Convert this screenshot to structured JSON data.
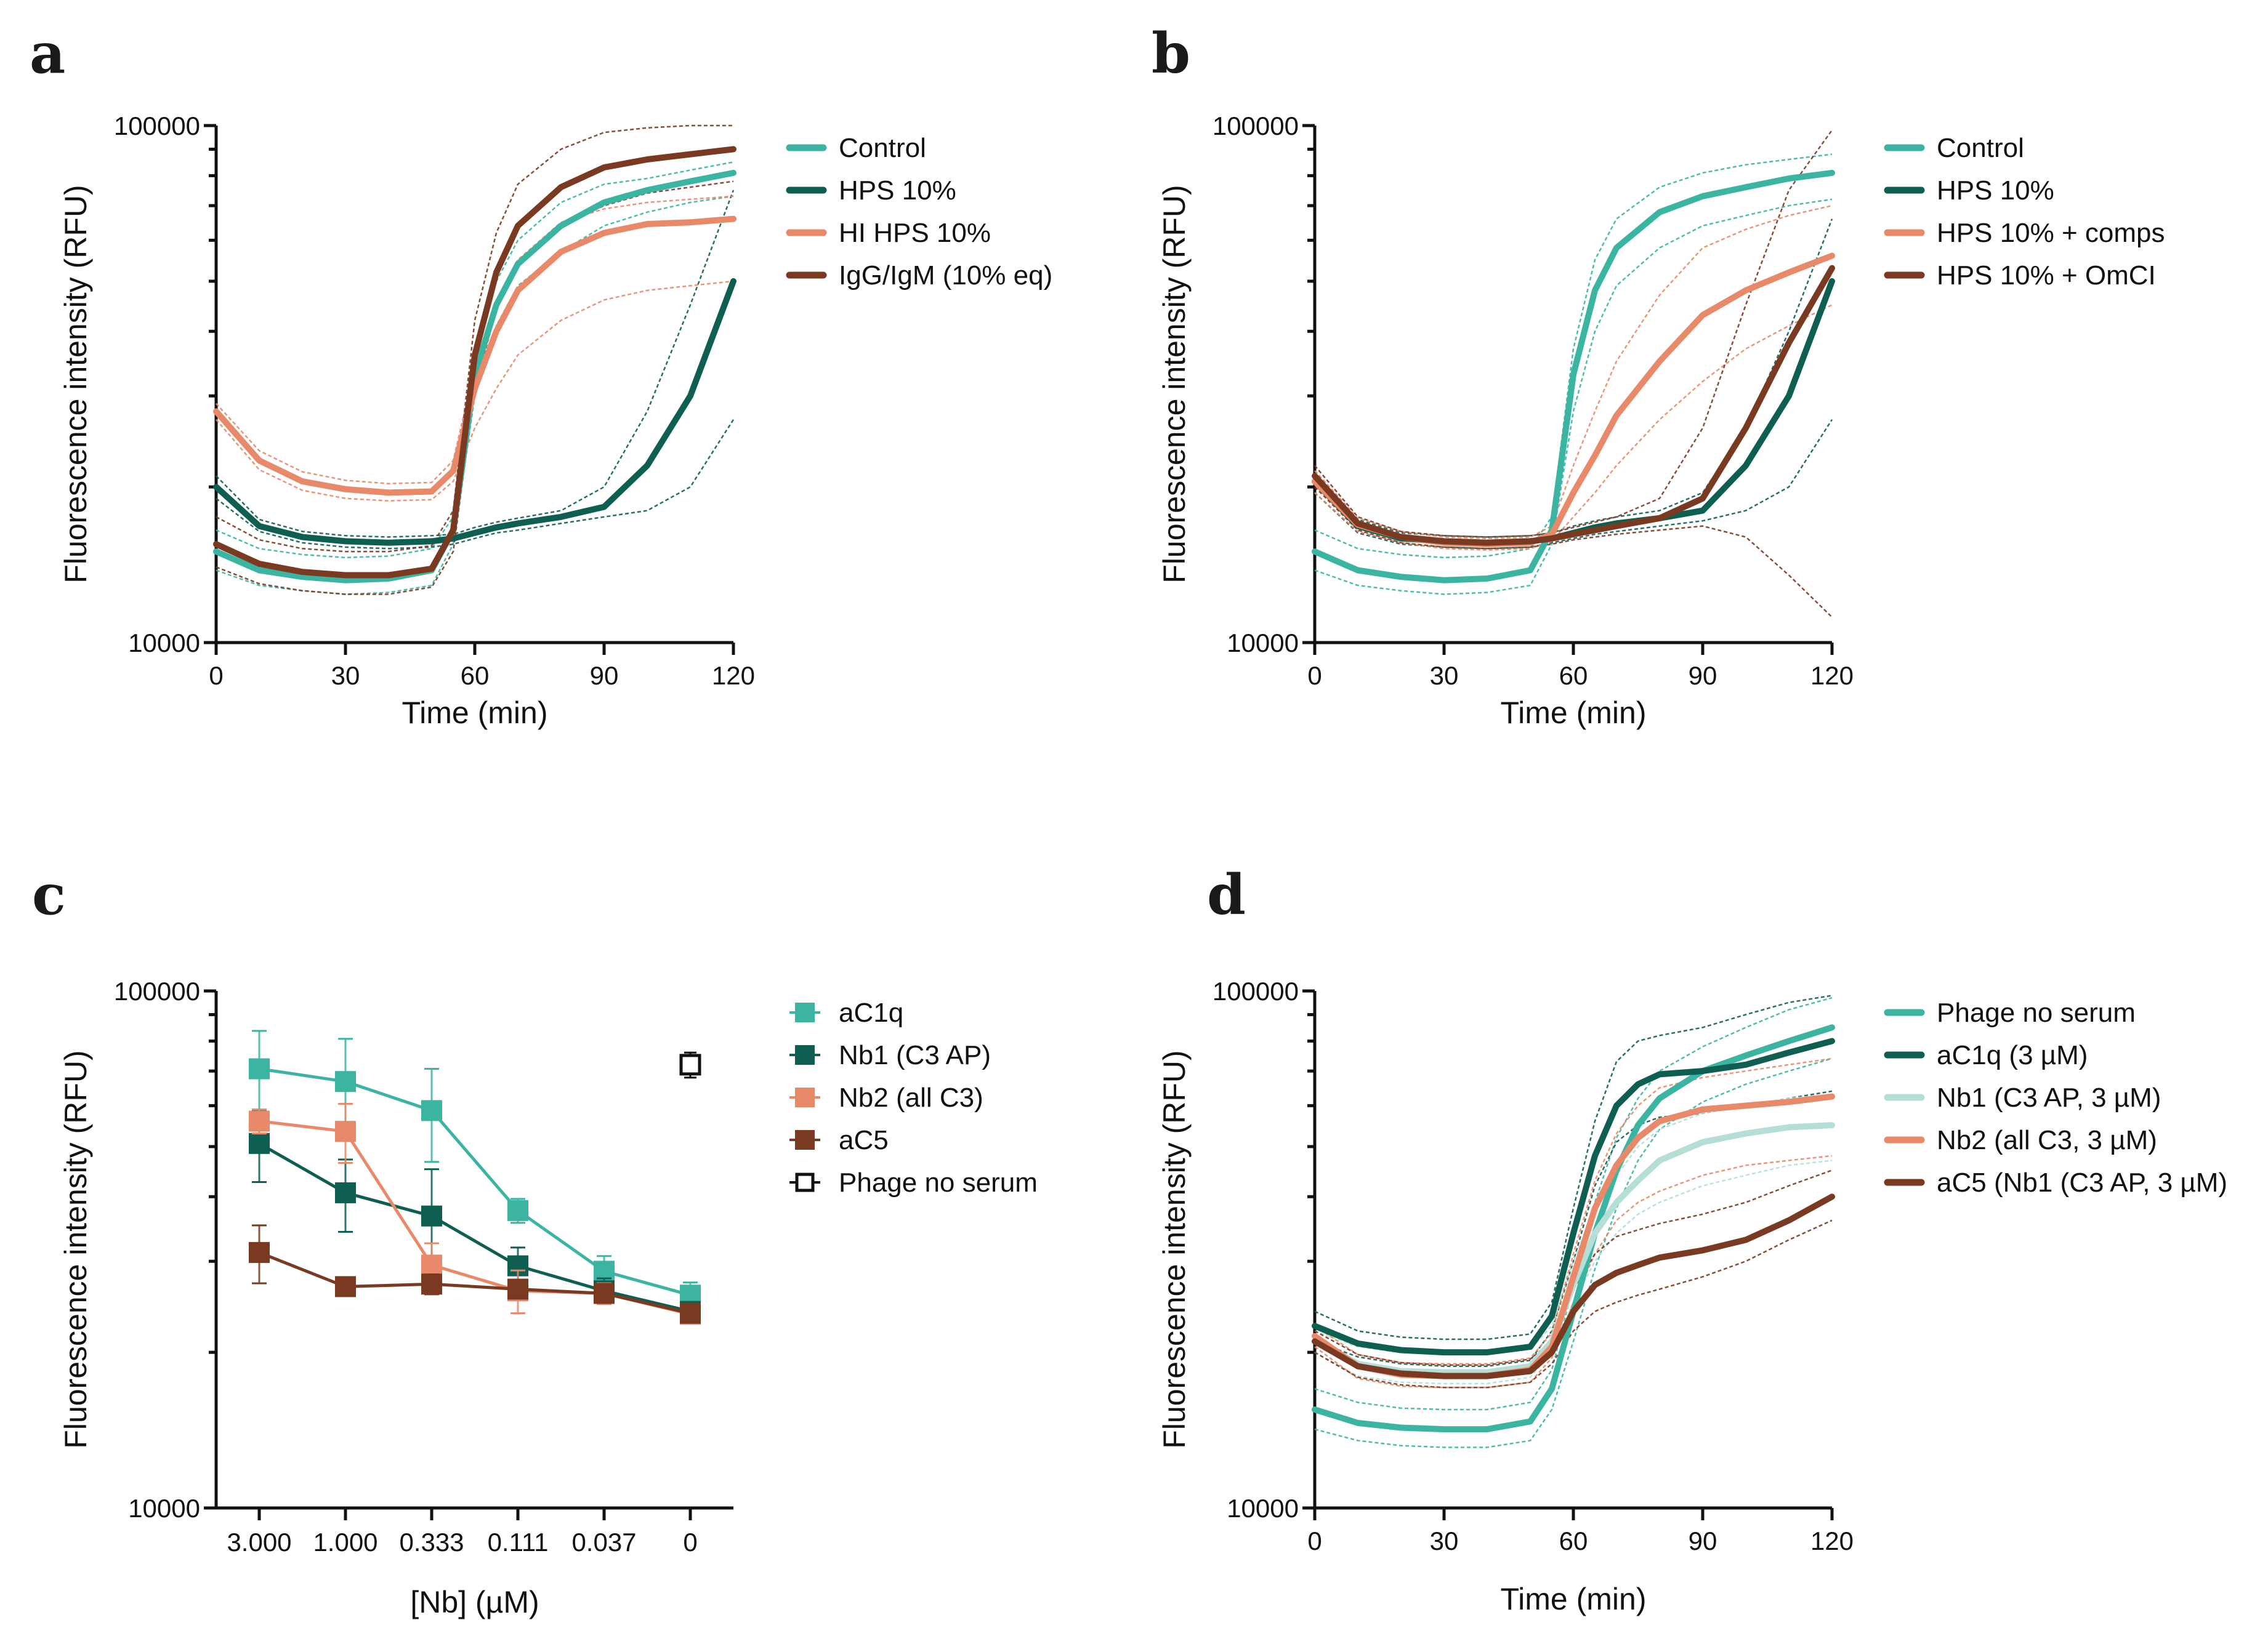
{
  "figure": {
    "colors": {
      "teal": "#3bb5a2",
      "dark_teal": "#0f5e52",
      "salmon": "#e8896a",
      "brown": "#7a3a22",
      "light_teal": "#b5ded6",
      "black": "#111111"
    }
  },
  "chart_data": [
    {
      "panel": "a",
      "type": "line",
      "title": "",
      "xlabel": "Time (min)",
      "ylabel": "Fluorescence intensity (RFU)",
      "xlim": [
        0,
        120
      ],
      "ylim": [
        10000,
        100000
      ],
      "yscale": "log",
      "xticks": [
        "0",
        "30",
        "60",
        "90",
        "120"
      ],
      "yticks": [
        "10000",
        "100000"
      ],
      "legend_position": "right",
      "x": [
        0,
        10,
        20,
        30,
        40,
        50,
        55,
        60,
        65,
        70,
        80,
        90,
        100,
        110,
        120
      ],
      "series": [
        {
          "name": "Control",
          "color": "teal",
          "values": [
            15000,
            13800,
            13400,
            13200,
            13300,
            13800,
            16500,
            33000,
            45000,
            54000,
            64000,
            71000,
            75000,
            78000,
            81000
          ],
          "upper": [
            16500,
            15200,
            14800,
            14600,
            14700,
            15200,
            17500,
            36000,
            50000,
            60000,
            71000,
            77000,
            79000,
            82000,
            85000
          ],
          "lower": [
            13800,
            12900,
            12600,
            12400,
            12500,
            12900,
            15500,
            30000,
            41000,
            49000,
            57000,
            64000,
            68000,
            71000,
            73000
          ]
        },
        {
          "name": "HPS 10%",
          "color": "dark_teal",
          "values": [
            20000,
            16800,
            16000,
            15700,
            15600,
            15700,
            15900,
            16300,
            16700,
            17000,
            17500,
            18300,
            22000,
            30000,
            50000
          ],
          "upper": [
            21000,
            17300,
            16400,
            16100,
            16000,
            16100,
            16200,
            16700,
            17100,
            17400,
            18000,
            20000,
            28000,
            45000,
            75000
          ],
          "lower": [
            19000,
            16400,
            15600,
            15300,
            15200,
            15300,
            15500,
            15900,
            16300,
            16500,
            17000,
            17500,
            18000,
            20000,
            27000
          ]
        },
        {
          "name": "HI HPS 10%",
          "color": "salmon",
          "values": [
            28000,
            22500,
            20500,
            19800,
            19500,
            19600,
            21500,
            31000,
            40000,
            48000,
            57000,
            62000,
            64500,
            65000,
            66000
          ],
          "upper": [
            29000,
            23500,
            21400,
            20600,
            20300,
            20400,
            22500,
            34000,
            45000,
            55000,
            65000,
            69000,
            71000,
            72000,
            73000
          ],
          "lower": [
            27000,
            21600,
            19700,
            19000,
            18800,
            18900,
            20500,
            26000,
            31000,
            36000,
            42000,
            46000,
            48000,
            49000,
            50000
          ]
        },
        {
          "name": "IgG/IgM (10% eq)",
          "color": "brown",
          "values": [
            15500,
            14200,
            13700,
            13500,
            13500,
            13900,
            16500,
            36000,
            52000,
            64000,
            76000,
            83000,
            86000,
            88000,
            90000
          ],
          "upper": [
            17500,
            15800,
            15200,
            15000,
            15000,
            15400,
            18000,
            42000,
            62000,
            77000,
            90000,
            97000,
            99000,
            100000,
            100000
          ],
          "lower": [
            14000,
            13000,
            12600,
            12400,
            12400,
            12800,
            15000,
            31000,
            44000,
            54000,
            64000,
            70000,
            74000,
            76000,
            78000
          ]
        }
      ]
    },
    {
      "panel": "b",
      "type": "line",
      "title": "",
      "xlabel": "Time (min)",
      "ylabel": "Fluorescence intensity (RFU)",
      "xlim": [
        0,
        120
      ],
      "ylim": [
        10000,
        100000
      ],
      "yscale": "log",
      "xticks": [
        "0",
        "30",
        "60",
        "90",
        "120"
      ],
      "yticks": [
        "10000",
        "100000"
      ],
      "legend_position": "right",
      "x": [
        0,
        10,
        20,
        30,
        40,
        50,
        55,
        60,
        65,
        70,
        80,
        90,
        100,
        110,
        120
      ],
      "series": [
        {
          "name": "Control",
          "color": "teal",
          "values": [
            15000,
            13800,
            13400,
            13200,
            13300,
            13800,
            16500,
            33000,
            48000,
            58000,
            68000,
            73000,
            76000,
            79000,
            81000
          ],
          "upper": [
            16500,
            15200,
            14800,
            14600,
            14700,
            15200,
            17500,
            37000,
            55000,
            66000,
            76000,
            81000,
            84000,
            86000,
            88000
          ],
          "lower": [
            13800,
            12900,
            12600,
            12400,
            12500,
            12900,
            15500,
            28000,
            40000,
            49000,
            58000,
            64000,
            67000,
            70000,
            72000
          ]
        },
        {
          "name": "HPS 10%",
          "color": "dark_teal",
          "values": [
            20500,
            16800,
            15900,
            15700,
            15600,
            15700,
            15900,
            16300,
            16700,
            17000,
            17400,
            18000,
            22000,
            30000,
            50000
          ],
          "upper": [
            21500,
            17300,
            16300,
            16100,
            16000,
            16100,
            16300,
            16800,
            17200,
            17500,
            18000,
            19500,
            26000,
            40000,
            66000
          ],
          "lower": [
            19500,
            16300,
            15500,
            15300,
            15200,
            15300,
            15600,
            15900,
            16200,
            16400,
            16800,
            17200,
            18000,
            20000,
            27000
          ]
        },
        {
          "name": "HPS 10% + comps",
          "color": "salmon",
          "values": [
            20500,
            16900,
            16000,
            15600,
            15500,
            15600,
            16200,
            19500,
            23000,
            27500,
            35000,
            43000,
            48000,
            52000,
            56000
          ],
          "upper": [
            21500,
            17400,
            16400,
            16000,
            15900,
            16000,
            16800,
            22000,
            28000,
            35000,
            47000,
            58000,
            63000,
            67000,
            70000
          ],
          "lower": [
            19500,
            16400,
            15600,
            15200,
            15100,
            15200,
            15700,
            17500,
            19500,
            22000,
            27000,
            32000,
            37000,
            41000,
            45000
          ]
        },
        {
          "name": "HPS 10% + OmCI",
          "color": "brown",
          "values": [
            21000,
            17000,
            16000,
            15700,
            15600,
            15700,
            15900,
            16200,
            16500,
            16800,
            17400,
            19000,
            26000,
            38000,
            53000
          ],
          "upper": [
            22000,
            17500,
            16400,
            16100,
            16000,
            16100,
            16300,
            16700,
            17100,
            17500,
            19000,
            26000,
            45000,
            75000,
            98000
          ],
          "lower": [
            20000,
            16500,
            15600,
            15300,
            15200,
            15300,
            15500,
            15800,
            16000,
            16200,
            16500,
            16800,
            16000,
            13500,
            11200
          ]
        }
      ]
    },
    {
      "panel": "c",
      "type": "line",
      "title": "",
      "xlabel": "[Nb] (µM)",
      "ylabel": "Fluorescence intensity (RFU)",
      "categories": [
        "3.000",
        "1.000",
        "0.333",
        "0.111",
        "0.037",
        "0"
      ],
      "ylim": [
        10000,
        100000
      ],
      "yscale": "log",
      "yticks": [
        "10000",
        "100000"
      ],
      "legend_position": "right",
      "markers": "square",
      "series": [
        {
          "name": "aC1q",
          "color": "teal",
          "marker": "filled-square",
          "values": [
            70700,
            66800,
            58700,
            37600,
            28700,
            25800
          ],
          "error": [
            13000,
            14000,
            12000,
            2000,
            2000,
            1500
          ]
        },
        {
          "name": "Nb1 (C3 AP)",
          "color": "dark_teal",
          "marker": "filled-square",
          "values": [
            50700,
            40700,
            36700,
            29400,
            26300,
            24000
          ],
          "error": [
            8000,
            6500,
            8500,
            2500,
            1500,
            800
          ]
        },
        {
          "name": "Nb2 (all C3)",
          "color": "salmon",
          "marker": "filled-square",
          "values": [
            56000,
            53500,
            29500,
            26300,
            26000,
            23700
          ],
          "error": [
            3000,
            7000,
            3000,
            2500,
            1200,
            800
          ]
        },
        {
          "name": "aC5",
          "color": "brown",
          "marker": "filled-square",
          "values": [
            31200,
            26800,
            27100,
            26500,
            26000,
            23800
          ],
          "error": [
            4000,
            800,
            1200,
            1000,
            800,
            700
          ]
        },
        {
          "name": "Phage no serum",
          "color": "black",
          "marker": "open-square",
          "points": [
            {
              "category": "0",
              "value": 72000,
              "error": 4000
            }
          ]
        }
      ]
    },
    {
      "panel": "d",
      "type": "line",
      "title": "",
      "xlabel": "Time (min)",
      "ylabel": "Fluorescence intensity (RFU)",
      "xlim": [
        0,
        120
      ],
      "ylim": [
        10000,
        100000
      ],
      "yscale": "log",
      "xticks": [
        "0",
        "30",
        "60",
        "90",
        "120"
      ],
      "yticks": [
        "10000",
        "100000"
      ],
      "legend_position": "right",
      "x": [
        0,
        10,
        20,
        30,
        40,
        50,
        55,
        60,
        65,
        70,
        75,
        80,
        90,
        100,
        110,
        120
      ],
      "series": [
        {
          "name": "Phage no serum",
          "color": "teal",
          "values": [
            15500,
            14600,
            14300,
            14200,
            14200,
            14700,
            17000,
            24000,
            34000,
            45000,
            55000,
            62000,
            70000,
            75000,
            80000,
            85000
          ],
          "upper": [
            17000,
            16000,
            15600,
            15500,
            15500,
            16000,
            18500,
            27000,
            39000,
            52000,
            62000,
            70000,
            78000,
            85000,
            92000,
            97000
          ],
          "lower": [
            14200,
            13500,
            13200,
            13100,
            13100,
            13500,
            15500,
            21000,
            29000,
            38000,
            47000,
            54000,
            61000,
            66000,
            70000,
            74000
          ]
        },
        {
          "name": "aC1q (3 µM)",
          "color": "dark_teal",
          "values": [
            22500,
            20800,
            20200,
            20000,
            20000,
            20500,
            23500,
            34000,
            48000,
            60000,
            66000,
            69000,
            70000,
            72000,
            76000,
            80000
          ],
          "upper": [
            24000,
            22000,
            21400,
            21200,
            21200,
            21700,
            25000,
            38000,
            56000,
            73000,
            80000,
            82000,
            85000,
            90000,
            95000,
            98000
          ],
          "lower": [
            21000,
            19600,
            19000,
            18800,
            18800,
            19300,
            22000,
            30000,
            42000,
            51000,
            55000,
            57000,
            58000,
            60000,
            62000,
            64000
          ]
        },
        {
          "name": "Nb1 (C3 AP, 3 µM)",
          "color": "light_teal",
          "values": [
            21000,
            19000,
            18400,
            18300,
            18300,
            18800,
            21000,
            27000,
            34000,
            39000,
            43000,
            47000,
            51000,
            53000,
            54500,
            55000
          ],
          "upper": [
            22000,
            20500,
            20000,
            19800,
            19800,
            20300,
            22500,
            30000,
            38000,
            44000,
            50000,
            54000,
            58000,
            60000,
            62000,
            63000
          ],
          "lower": [
            20000,
            18000,
            17500,
            17400,
            17400,
            17900,
            20000,
            25000,
            30000,
            34000,
            37000,
            39000,
            42000,
            44000,
            46000,
            47000
          ]
        },
        {
          "name": "Nb2 (all C3, 3 µM)",
          "color": "salmon",
          "values": [
            21500,
            18800,
            18100,
            18000,
            18000,
            18500,
            20500,
            28000,
            38000,
            46000,
            52000,
            56000,
            59000,
            60000,
            61000,
            62500
          ],
          "upper": [
            22500,
            19800,
            19100,
            19000,
            19000,
            19500,
            21800,
            31000,
            43000,
            53000,
            60000,
            65000,
            68000,
            70000,
            72000,
            74000
          ],
          "lower": [
            20500,
            17800,
            17200,
            17100,
            17100,
            17500,
            19500,
            25000,
            31000,
            36000,
            39000,
            41000,
            44000,
            46000,
            47000,
            48000
          ]
        },
        {
          "name": "aC5 (Nb1 (C3 AP, 3 µM)",
          "color": "brown",
          "values": [
            21000,
            18800,
            18200,
            18000,
            18000,
            18400,
            20000,
            24000,
            27000,
            28500,
            29500,
            30500,
            31500,
            33000,
            36000,
            40000
          ],
          "upper": [
            22000,
            19800,
            19100,
            18900,
            18900,
            19400,
            21000,
            26500,
            31000,
            33500,
            34500,
            35500,
            37000,
            39000,
            42000,
            45000
          ],
          "lower": [
            20000,
            17900,
            17300,
            17100,
            17100,
            17500,
            19000,
            22000,
            24000,
            25000,
            25800,
            26500,
            28000,
            30000,
            33000,
            36000
          ]
        }
      ]
    }
  ]
}
